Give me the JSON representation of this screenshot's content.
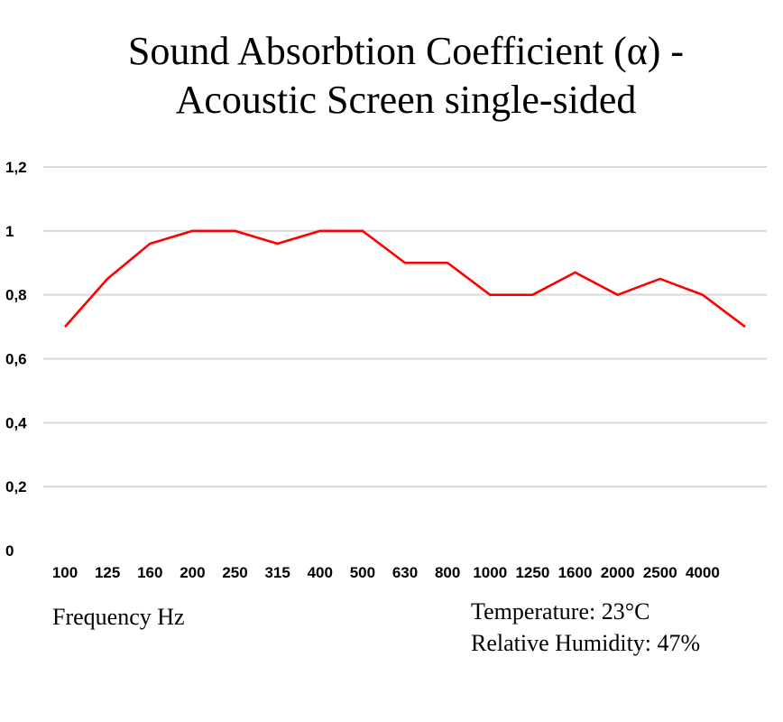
{
  "chart_data": {
    "type": "line",
    "title_line1": "Sound Absorbtion Coefficient (α) -",
    "title_line2": "Acoustic Screen single-sided",
    "xlabel": "Frequency Hz",
    "ylabel": "",
    "categories": [
      "100",
      "125",
      "160",
      "200",
      "250",
      "315",
      "400",
      "500",
      "630",
      "800",
      "1000",
      "1250",
      "1600",
      "2000",
      "2500",
      "4000",
      ""
    ],
    "series": [
      {
        "name": "α",
        "color": "#ff0000",
        "values": [
          0.7,
          0.85,
          0.96,
          1,
          1,
          0.96,
          1,
          1,
          0.9,
          0.9,
          0.8,
          0.8,
          0.87,
          0.8,
          0.85,
          0.8,
          0.7
        ]
      }
    ],
    "ylim": [
      0,
      1.2
    ],
    "yticks": [
      0,
      0.2,
      0.4,
      0.6,
      0.8,
      1,
      1.2
    ],
    "ytick_labels": [
      "0",
      "0,2",
      "0,4",
      "0,6",
      "0,8",
      "1",
      "1,2"
    ],
    "grid": true,
    "legend": "none",
    "annotations": {
      "temperature": "Temperature: 23°C",
      "humidity": "Relative Humidity: 47%"
    }
  }
}
